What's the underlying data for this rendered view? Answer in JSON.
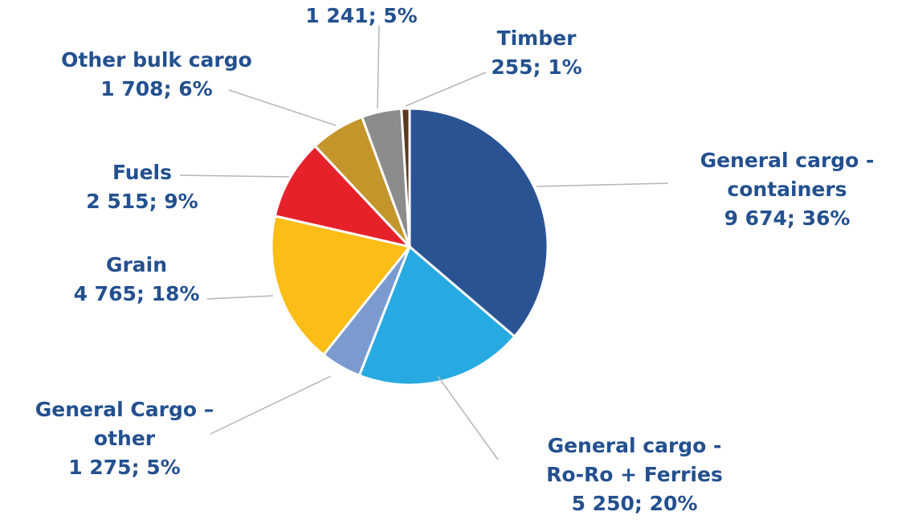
{
  "chart_data": {
    "type": "pie",
    "categories": [
      "General cargo - containers",
      "General cargo - Ro-Ro + Ferries",
      "General Cargo – other",
      "Grain",
      "Fuels",
      "Other bulk cargo",
      null,
      "Timber"
    ],
    "values": [
      9674,
      5250,
      1275,
      4765,
      2515,
      1708,
      1241,
      255
    ],
    "value_labels": [
      "9 674; 36%",
      "5 250; 20%",
      "1 275; 5%",
      "4 765; 18%",
      "2 515; 9%",
      "1 708; 6%",
      "1 241; 5%",
      "255; 1%"
    ],
    "colors": [
      "#2a5394",
      "#27aae1",
      "#7b9bd0",
      "#fbbd16",
      "#e62129",
      "#c4952a",
      "#8c8c8c",
      "#5a3a1e"
    ]
  }
}
